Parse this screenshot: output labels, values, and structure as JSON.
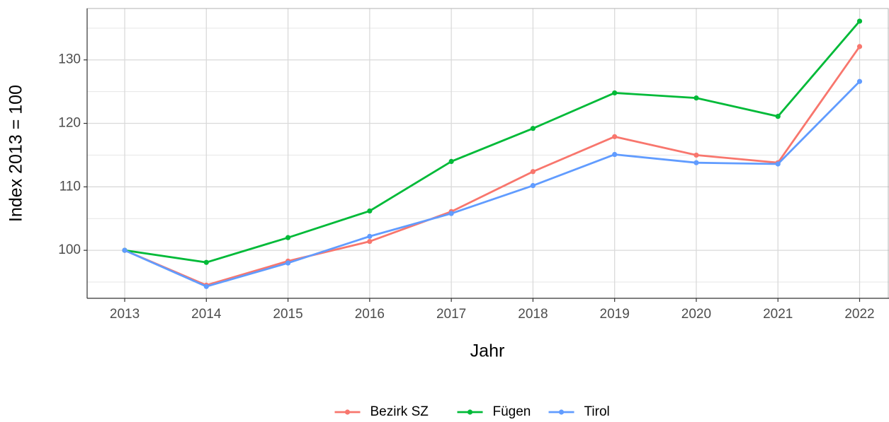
{
  "chart_data": {
    "type": "line",
    "xlabel": "Jahr",
    "ylabel": "Index  2013  = 100",
    "x": [
      2013,
      2014,
      2015,
      2016,
      2017,
      2018,
      2019,
      2020,
      2021,
      2022
    ],
    "series": [
      {
        "name": "Bezirk SZ",
        "color": "#F8766D",
        "values": [
          100,
          94.5,
          98.3,
          101.4,
          106.1,
          112.4,
          117.9,
          115.0,
          113.8,
          132.1
        ]
      },
      {
        "name": "Fügen",
        "color": "#00BA38",
        "values": [
          100,
          98.1,
          102.0,
          106.2,
          114.0,
          119.2,
          124.8,
          124.0,
          121.1,
          136.1
        ]
      },
      {
        "name": "Tirol",
        "color": "#619CFF",
        "values": [
          100,
          94.3,
          98.0,
          102.2,
          105.8,
          110.2,
          115.1,
          113.8,
          113.6,
          126.6
        ]
      }
    ],
    "xlim": [
      2012.54,
      2022.36
    ],
    "xticks": [
      2013,
      2014,
      2015,
      2016,
      2017,
      2018,
      2019,
      2020,
      2021,
      2022
    ],
    "ylim": [
      92.44,
      138.1
    ],
    "yticks": [
      100,
      110,
      120,
      130
    ],
    "minor_yticks": [
      95,
      105,
      115,
      125,
      135
    ],
    "grid": true,
    "legend": "bottom"
  }
}
